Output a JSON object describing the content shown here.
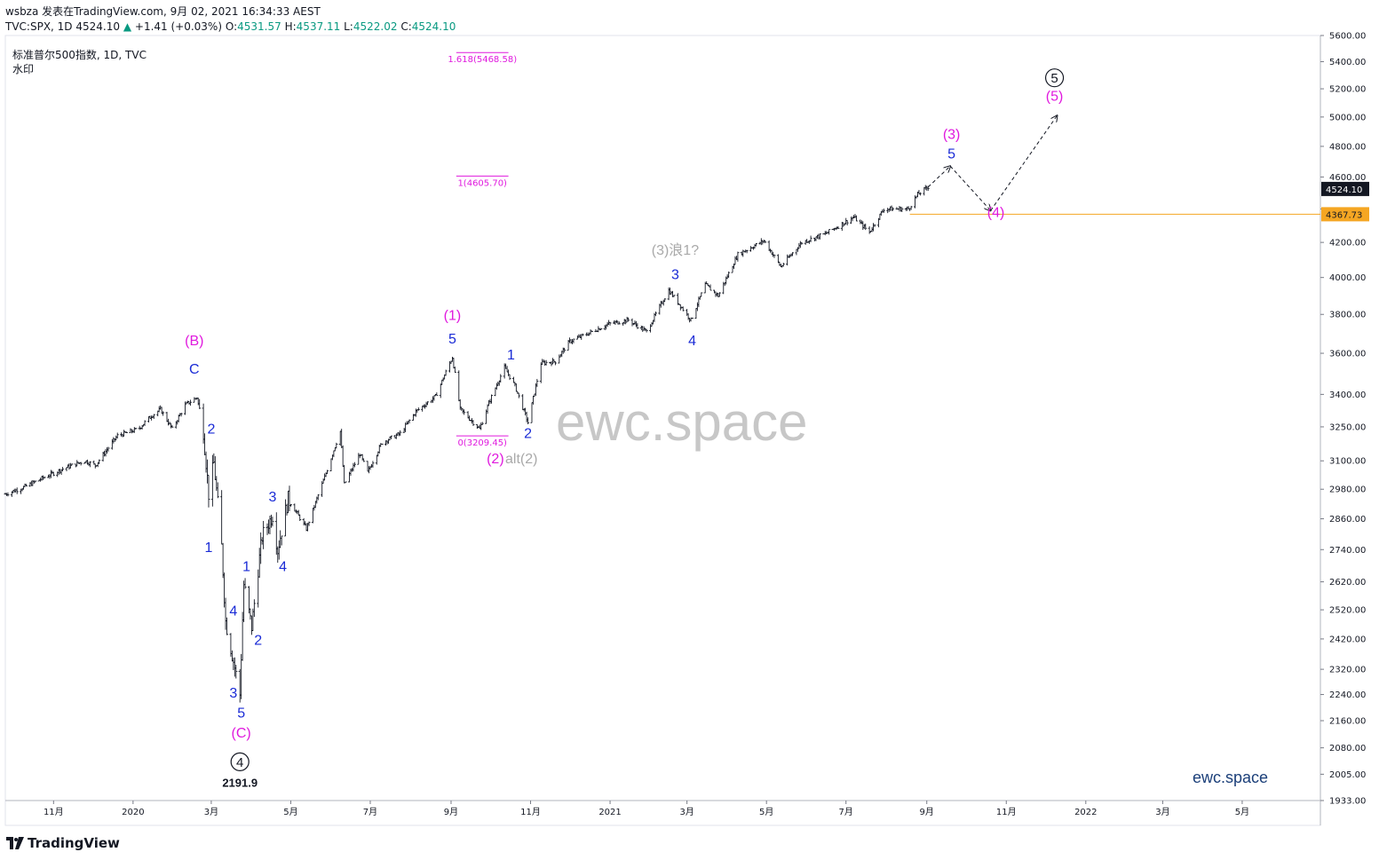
{
  "header": {
    "line1": "wsbza 发表在TradingView.com, 9月 02, 2021 16:34:33 AEST",
    "symbol": "TVC:SPX, 1D",
    "price": "4524.10",
    "change_icon": "triangle-up",
    "change": "+1.41 (+0.03%)",
    "open_label": "O:",
    "open": "4531.57",
    "high_label": "H:",
    "high": "4537.11",
    "low_label": "L:",
    "low": "4522.02",
    "close_label": "C:",
    "close": "4524.10"
  },
  "legend": {
    "title": "标准普尔500指数, 1D, TVC",
    "watermark_label": "水印"
  },
  "watermark_text": "ewc.space",
  "brand_text": "ewc.space",
  "footer_logo": "TradingView",
  "chart_data": {
    "type": "ohlc",
    "scale": "log",
    "ylim": [
      1933,
      5600
    ],
    "x_range": [
      "2019-09-25",
      "2022-06-30"
    ],
    "price_axis_ticks": [
      5600,
      5400,
      5200,
      5000,
      4800,
      4600,
      4400,
      4200,
      4000,
      3800,
      3600,
      3400,
      3250,
      3100,
      2980,
      2860,
      2740,
      2620,
      2520,
      2420,
      2320,
      2240,
      2160,
      2080,
      2005,
      1933
    ],
    "price_axis_tick_labels": [
      "5600.00",
      "5400.00",
      "5200.00",
      "5000.00",
      "4800.00",
      "4600.00",
      "",
      "4200.00",
      "4000.00",
      "3800.00",
      "3600.00",
      "3400.00",
      "3250.00",
      "3100.00",
      "2980.00",
      "2860.00",
      "2740.00",
      "2620.00",
      "2520.00",
      "2420.00",
      "2320.00",
      "2240.00",
      "2160.00",
      "2080.00",
      "2005.00",
      "1933.00"
    ],
    "time_axis_ticks": [
      {
        "date": "2019-11-01",
        "label": "11月"
      },
      {
        "date": "2020-01-01",
        "label": "2020"
      },
      {
        "date": "2020-03-01",
        "label": "3月"
      },
      {
        "date": "2020-05-01",
        "label": "5月"
      },
      {
        "date": "2020-07-01",
        "label": "7月"
      },
      {
        "date": "2020-09-01",
        "label": "9月"
      },
      {
        "date": "2020-11-01",
        "label": "11月"
      },
      {
        "date": "2021-01-01",
        "label": "2021"
      },
      {
        "date": "2021-03-01",
        "label": "3月"
      },
      {
        "date": "2021-05-01",
        "label": "5月"
      },
      {
        "date": "2021-07-01",
        "label": "7月"
      },
      {
        "date": "2021-09-01",
        "label": "9月"
      },
      {
        "date": "2021-11-01",
        "label": "11月"
      },
      {
        "date": "2022-01-01",
        "label": "2022"
      },
      {
        "date": "2022-03-01",
        "label": "3月"
      },
      {
        "date": "2022-05-01",
        "label": "5月"
      }
    ],
    "price_path": [
      [
        "2019-09-25",
        2960
      ],
      [
        "2019-10-10",
        2990
      ],
      [
        "2019-10-25",
        3030
      ],
      [
        "2019-11-10",
        3070
      ],
      [
        "2019-11-25",
        3100
      ],
      [
        "2019-12-03",
        3080
      ],
      [
        "2019-12-20",
        3210
      ],
      [
        "2020-01-05",
        3240
      ],
      [
        "2020-01-15",
        3300
      ],
      [
        "2020-01-22",
        3330
      ],
      [
        "2020-01-31",
        3240
      ],
      [
        "2020-02-10",
        3350
      ],
      [
        "2020-02-19",
        3386
      ],
      [
        "2020-02-24",
        3230
      ],
      [
        "2020-02-28",
        2960
      ],
      [
        "2020-03-03",
        3090
      ],
      [
        "2020-03-09",
        2750
      ],
      [
        "2020-03-12",
        2480
      ],
      [
        "2020-03-16",
        2390
      ],
      [
        "2020-03-23",
        2240
      ],
      [
        "2020-03-26",
        2610
      ],
      [
        "2020-04-01",
        2460
      ],
      [
        "2020-04-09",
        2790
      ],
      [
        "2020-04-17",
        2875
      ],
      [
        "2020-04-21",
        2740
      ],
      [
        "2020-04-29",
        2940
      ],
      [
        "2020-05-13",
        2820
      ],
      [
        "2020-05-27",
        3030
      ],
      [
        "2020-06-08",
        3230
      ],
      [
        "2020-06-11",
        3000
      ],
      [
        "2020-06-23",
        3130
      ],
      [
        "2020-06-29",
        3050
      ],
      [
        "2020-07-10",
        3180
      ],
      [
        "2020-07-24",
        3220
      ],
      [
        "2020-08-05",
        3320
      ],
      [
        "2020-08-20",
        3390
      ],
      [
        "2020-09-02",
        3580
      ],
      [
        "2020-09-08",
        3330
      ],
      [
        "2020-09-23",
        3240
      ],
      [
        "2020-09-30",
        3360
      ],
      [
        "2020-10-12",
        3530
      ],
      [
        "2020-10-20",
        3440
      ],
      [
        "2020-10-30",
        3270
      ],
      [
        "2020-11-09",
        3550
      ],
      [
        "2020-11-20",
        3560
      ],
      [
        "2020-12-01",
        3660
      ],
      [
        "2020-12-15",
        3700
      ],
      [
        "2020-12-31",
        3750
      ],
      [
        "2021-01-15",
        3770
      ],
      [
        "2021-01-29",
        3710
      ],
      [
        "2021-02-15",
        3930
      ],
      [
        "2021-03-04",
        3770
      ],
      [
        "2021-03-15",
        3960
      ],
      [
        "2021-03-25",
        3900
      ],
      [
        "2021-04-09",
        4130
      ],
      [
        "2021-04-29",
        4210
      ],
      [
        "2021-05-12",
        4060
      ],
      [
        "2021-05-28",
        4200
      ],
      [
        "2021-06-15",
        4250
      ],
      [
        "2021-07-07",
        4350
      ],
      [
        "2021-07-19",
        4260
      ],
      [
        "2021-07-30",
        4400
      ],
      [
        "2021-08-18",
        4400
      ],
      [
        "2021-08-25",
        4490
      ],
      [
        "2021-09-02",
        4536
      ]
    ],
    "horizontal_line": {
      "price": 4367.73,
      "label": "4367.73",
      "start": "2021-08-19",
      "color": "#f5a623"
    },
    "last_price": {
      "price": 4524.1,
      "label": "4524.10"
    },
    "fib_levels": [
      {
        "price": 5468.58,
        "label": "1.618(5468.58)"
      },
      {
        "price": 4605.7,
        "label": "1(4605.70)"
      },
      {
        "price": 3209.45,
        "label": "0(3209.45)"
      }
    ],
    "fib_range": [
      "2020-09-05",
      "2020-10-15"
    ],
    "projection": [
      [
        "2021-09-02",
        4536
      ],
      [
        "2021-09-19",
        4670
      ],
      [
        "2021-10-20",
        4390
      ],
      [
        "2021-12-10",
        5010
      ]
    ],
    "wave_labels": [
      {
        "text": "(B)",
        "date": "2020-02-17",
        "price": 3640,
        "color": "#e019de"
      },
      {
        "text": "C",
        "date": "2020-02-17",
        "price": 3500,
        "color": "#1a2bd6"
      },
      {
        "text": "2",
        "date": "2020-03-01",
        "price": 3220,
        "color": "#1a2bd6"
      },
      {
        "text": "1",
        "date": "2020-02-28",
        "price": 2730,
        "color": "#1a2bd6"
      },
      {
        "text": "4",
        "date": "2020-03-18",
        "price": 2500,
        "color": "#1a2bd6"
      },
      {
        "text": "3",
        "date": "2020-03-18",
        "price": 2230,
        "color": "#1a2bd6"
      },
      {
        "text": "5",
        "date": "2020-03-24",
        "price": 2170,
        "color": "#1a2bd6"
      },
      {
        "text": "(C)",
        "date": "2020-03-24",
        "price": 2110,
        "color": "#e019de"
      },
      {
        "text": "1",
        "date": "2020-03-28",
        "price": 2660,
        "color": "#1a2bd6"
      },
      {
        "text": "2",
        "date": "2020-04-06",
        "price": 2400,
        "color": "#1a2bd6"
      },
      {
        "text": "3",
        "date": "2020-04-17",
        "price": 2930,
        "color": "#1a2bd6"
      },
      {
        "text": "4",
        "date": "2020-04-25",
        "price": 2660,
        "color": "#1a2bd6"
      },
      {
        "text": "(1)",
        "date": "2020-09-02",
        "price": 3770,
        "color": "#e019de"
      },
      {
        "text": "5",
        "date": "2020-09-02",
        "price": 3650,
        "color": "#1a2bd6"
      },
      {
        "text": "(2)",
        "date": "2020-10-05",
        "price": 3090,
        "color": "#e019de"
      },
      {
        "text": "1",
        "date": "2020-10-17",
        "price": 3570,
        "color": "#1a2bd6"
      },
      {
        "text": "2",
        "date": "2020-10-30",
        "price": 3200,
        "color": "#1a2bd6"
      },
      {
        "text": "alt(2)",
        "date": "2020-10-25",
        "price": 3090,
        "color": "#a9a9a9"
      },
      {
        "text": "(3)浪1?",
        "date": "2021-02-20",
        "price": 4130,
        "color": "#a9a9a9"
      },
      {
        "text": "3",
        "date": "2021-02-20",
        "price": 3990,
        "color": "#1a2bd6"
      },
      {
        "text": "4",
        "date": "2021-03-05",
        "price": 3640,
        "color": "#1a2bd6"
      },
      {
        "text": "(3)",
        "date": "2021-09-20",
        "price": 4850,
        "color": "#e019de"
      },
      {
        "text": "5",
        "date": "2021-09-20",
        "price": 4720,
        "color": "#1a2bd6"
      },
      {
        "text": "(4)",
        "date": "2021-10-24",
        "price": 4350,
        "color": "#e019de"
      },
      {
        "text": "(5)",
        "date": "2021-12-08",
        "price": 5115,
        "color": "#e019de"
      },
      {
        "text": "2191.9",
        "date": "2020-03-23",
        "price": 1970,
        "color": "#131722"
      }
    ],
    "circled_labels": [
      {
        "text": "4",
        "date": "2020-03-23",
        "price": 2040
      },
      {
        "text": "5",
        "date": "2021-12-08",
        "price": 5280
      }
    ]
  }
}
